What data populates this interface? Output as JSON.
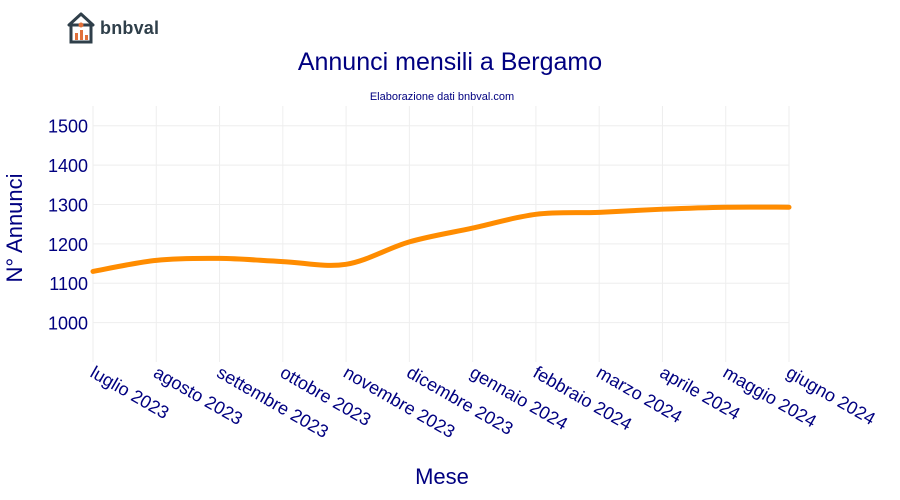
{
  "brand": {
    "name": "bnbval",
    "icon": "house-chart-logo-icon"
  },
  "colors": {
    "text": "#000080",
    "line": "#ff8c00",
    "grid": "#eeeeee",
    "logo_dark": "#2f3f4a",
    "logo_accent": "#e0703a"
  },
  "chart_data": {
    "type": "line",
    "title": "Annunci mensili a Bergamo",
    "subtitle": "Elaborazione dati bnbval.com",
    "xlabel": "Mese",
    "ylabel": "N° Annunci",
    "categories": [
      "luglio 2023",
      "agosto 2023",
      "settembre 2023",
      "ottobre 2023",
      "novembre 2023",
      "dicembre 2023",
      "gennaio 2024",
      "febbraio 2024",
      "marzo 2024",
      "aprile 2024",
      "maggio 2024",
      "giugno 2024"
    ],
    "values": [
      1130,
      1158,
      1163,
      1155,
      1148,
      1205,
      1240,
      1275,
      1280,
      1288,
      1293,
      1293
    ],
    "yticks": [
      1000,
      1100,
      1200,
      1300,
      1400,
      1500
    ],
    "ylim": [
      900,
      1550
    ],
    "grid": true,
    "legend": "none"
  }
}
